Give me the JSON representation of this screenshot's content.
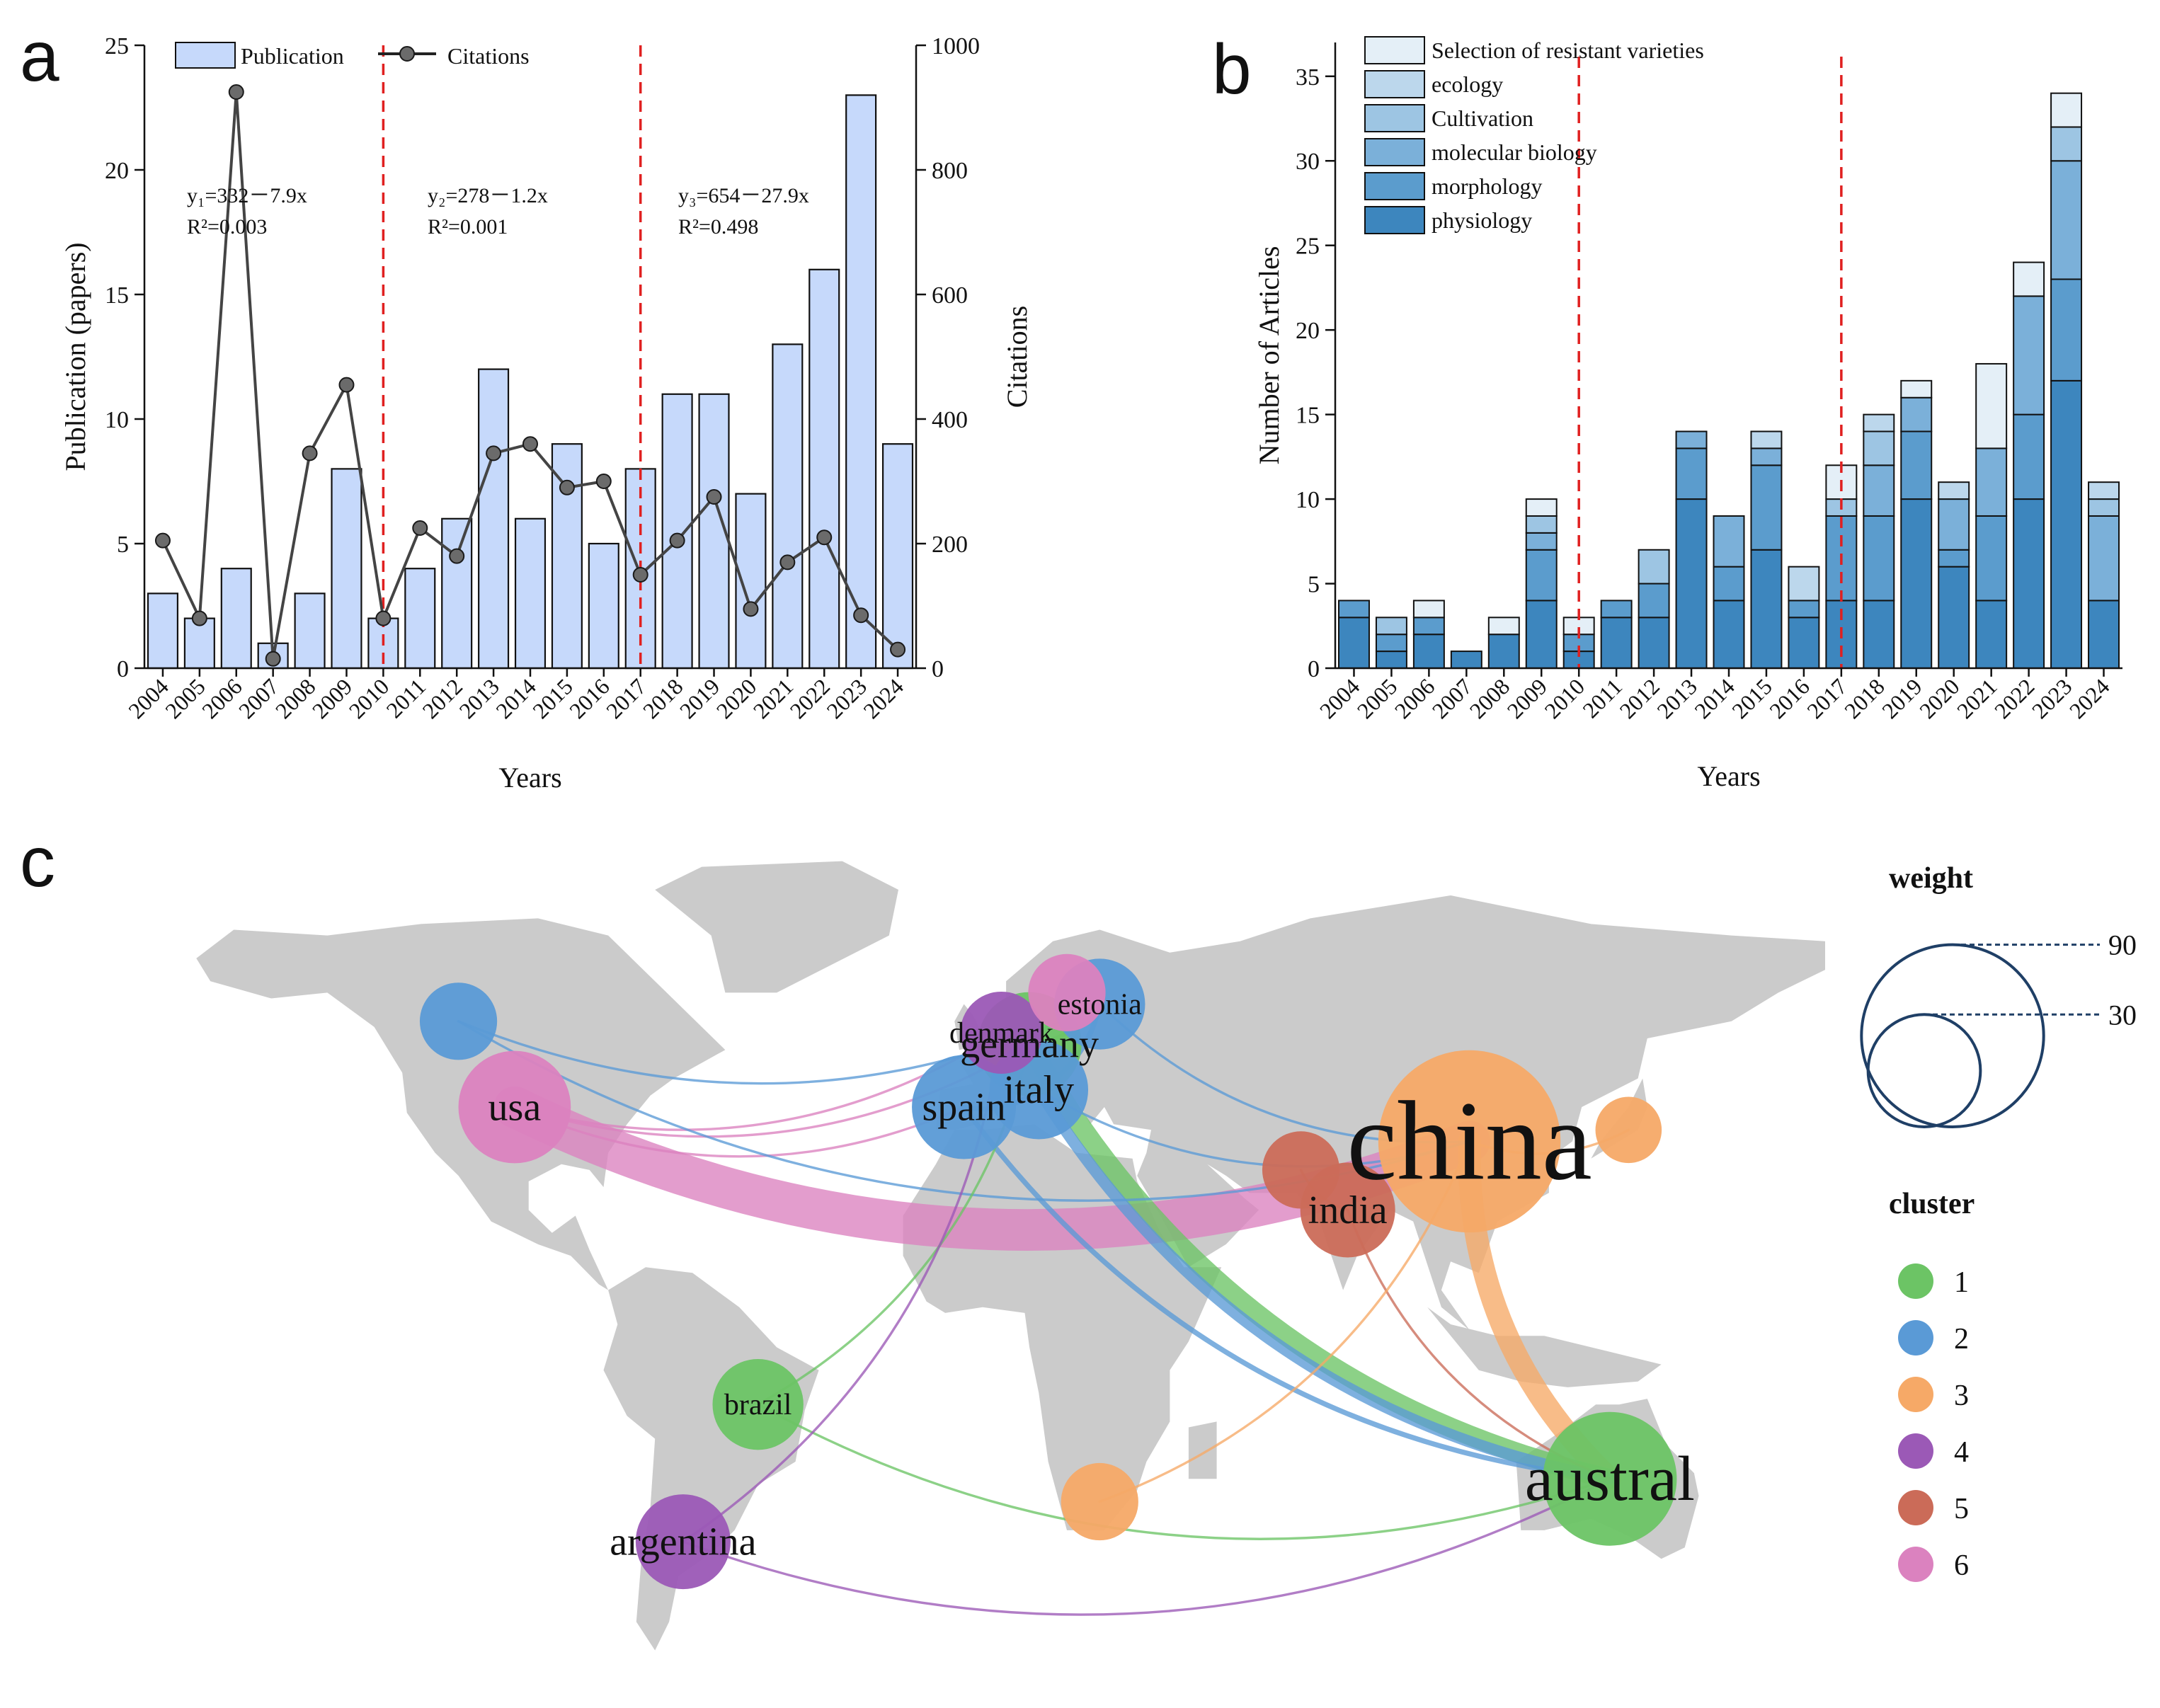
{
  "panels": {
    "a": "a",
    "b": "b",
    "c": "c"
  },
  "colors": {
    "pub_bar": "#c6d9fb",
    "pub_bar_stroke": "#111111",
    "citation_line": "#444444",
    "divider": "#e02020",
    "stack": [
      "#3d86be",
      "#5b9ccd",
      "#7bb0d9",
      "#9dc5e3",
      "#bcd7ec",
      "#e4eff7"
    ],
    "land": "#cbcbcb",
    "clusters": [
      "#6cc465",
      "#5a9ad6",
      "#f6a967",
      "#9b59b6",
      "#cb6b58",
      "#db82bf"
    ],
    "weight_ring": "#1f3f66"
  },
  "chart_data": [
    {
      "id": "a",
      "type": "bar+line",
      "title": "",
      "categories": [
        "2004",
        "2005",
        "2006",
        "2007",
        "2008",
        "2009",
        "2010",
        "2011",
        "2012",
        "2013",
        "2014",
        "2015",
        "2016",
        "2017",
        "2018",
        "2019",
        "2020",
        "2021",
        "2022",
        "2023",
        "2024"
      ],
      "series": [
        {
          "name": "Publication",
          "type": "bar",
          "axis": "left",
          "values": [
            3,
            2,
            4,
            1,
            3,
            8,
            2,
            4,
            6,
            12,
            6,
            9,
            5,
            8,
            11,
            11,
            7,
            13,
            16,
            23,
            9
          ]
        },
        {
          "name": "Citations",
          "type": "line",
          "axis": "right",
          "values": [
            205,
            80,
            925,
            15,
            345,
            455,
            80,
            225,
            180,
            345,
            360,
            290,
            300,
            150,
            205,
            275,
            95,
            170,
            210,
            85,
            30
          ]
        }
      ],
      "xlabel": "Years",
      "ylabel": "Publication (papers)",
      "y2label": "Citations",
      "ylim": [
        0,
        25
      ],
      "y2lim": [
        0,
        1000
      ],
      "yticks": [
        0,
        5,
        10,
        15,
        20,
        25
      ],
      "y2ticks": [
        0,
        200,
        400,
        600,
        800,
        1000
      ],
      "dividers": [
        "2010",
        "2017"
      ],
      "legend": [
        "Publication",
        "Citations"
      ],
      "annotations": [
        {
          "eq": "y₁=332－7.9x",
          "r2": "R²=0.003"
        },
        {
          "eq": "y₂=278－1.2x",
          "r2": "R²=0.001"
        },
        {
          "eq": "y₃=654－27.9x",
          "r2": "R²=0.498"
        }
      ]
    },
    {
      "id": "b",
      "type": "bar",
      "stacked": true,
      "categories": [
        "2004",
        "2005",
        "2006",
        "2007",
        "2008",
        "2009",
        "2010",
        "2011",
        "2012",
        "2013",
        "2014",
        "2015",
        "2016",
        "2017",
        "2018",
        "2019",
        "2020",
        "2021",
        "2022",
        "2023",
        "2024"
      ],
      "series": [
        {
          "name": "physiology",
          "values": [
            3,
            1,
            2,
            1,
            2,
            4,
            1,
            3,
            3,
            10,
            4,
            7,
            3,
            4,
            4,
            10,
            6,
            4,
            10,
            17,
            4
          ]
        },
        {
          "name": "morphology",
          "values": [
            1,
            1,
            1,
            0,
            0,
            3,
            1,
            1,
            2,
            3,
            2,
            5,
            1,
            5,
            5,
            4,
            1,
            5,
            5,
            6,
            0
          ]
        },
        {
          "name": "molecular biology",
          "values": [
            0,
            0,
            0,
            0,
            0,
            1,
            0,
            0,
            0,
            1,
            3,
            1,
            0,
            0,
            3,
            2,
            3,
            4,
            7,
            7,
            5
          ]
        },
        {
          "name": "Cultivation",
          "values": [
            0,
            1,
            0,
            0,
            0,
            1,
            0,
            0,
            2,
            0,
            0,
            0,
            0,
            1,
            2,
            0,
            0,
            0,
            0,
            2,
            1
          ]
        },
        {
          "name": "ecology",
          "values": [
            0,
            0,
            0,
            0,
            0,
            0,
            0,
            0,
            0,
            0,
            0,
            1,
            2,
            0,
            1,
            0,
            1,
            0,
            0,
            0,
            1
          ]
        },
        {
          "name": "Selection of resistant varieties",
          "values": [
            0,
            0,
            1,
            0,
            1,
            1,
            1,
            0,
            0,
            0,
            0,
            0,
            0,
            2,
            0,
            1,
            0,
            5,
            2,
            2,
            0
          ]
        }
      ],
      "xlabel": "Years",
      "ylabel": "Number of Articles",
      "ylim": [
        0,
        37
      ],
      "yticks": [
        0,
        5,
        10,
        15,
        20,
        25,
        30,
        35
      ],
      "dividers": [
        "2010",
        "2017"
      ],
      "legend": [
        "Selection of resistant varieties",
        "ecology",
        "Cultivation",
        "molecular biology",
        "morphology",
        "physiology"
      ]
    },
    {
      "id": "c",
      "type": "network-map",
      "nodes": [
        {
          "name": "china",
          "label": "china",
          "cluster": 3,
          "weight": 90,
          "lon": 104,
          "lat": 34
        },
        {
          "name": "usa",
          "label": "usa",
          "cluster": 6,
          "weight": 30,
          "lon": -100,
          "lat": 40
        },
        {
          "name": "austral",
          "label": "austral",
          "cluster": 1,
          "weight": 45,
          "lon": 134,
          "lat": -25
        },
        {
          "name": "germany",
          "label": "germany",
          "cluster": 1,
          "weight": 25,
          "lon": 10,
          "lat": 51
        },
        {
          "name": "spain",
          "label": "spain",
          "cluster": 2,
          "weight": 25,
          "lon": -4,
          "lat": 40
        },
        {
          "name": "italy",
          "label": "italy",
          "cluster": 2,
          "weight": 22,
          "lon": 12,
          "lat": 43
        },
        {
          "name": "estonia",
          "label": "estonia",
          "cluster": 2,
          "weight": 18,
          "lon": 25,
          "lat": 58
        },
        {
          "name": "denmark",
          "label": "denmark",
          "cluster": 4,
          "weight": 14,
          "lon": 4,
          "lat": 53
        },
        {
          "name": "finland",
          "label": "",
          "cluster": 6,
          "weight": 12,
          "lon": 18,
          "lat": 60
        },
        {
          "name": "canada",
          "label": "",
          "cluster": 2,
          "weight": 12,
          "lon": -112,
          "lat": 55
        },
        {
          "name": "india",
          "label": "india",
          "cluster": 5,
          "weight": 20,
          "lon": 78,
          "lat": 22
        },
        {
          "name": "pakistan",
          "label": "",
          "cluster": 5,
          "weight": 12,
          "lon": 68,
          "lat": 29
        },
        {
          "name": "japan",
          "label": "",
          "cluster": 3,
          "weight": 8,
          "lon": 138,
          "lat": 36
        },
        {
          "name": "brazil",
          "label": "brazil",
          "cluster": 1,
          "weight": 18,
          "lon": -48,
          "lat": -12
        },
        {
          "name": "argentina",
          "label": "argentina",
          "cluster": 4,
          "weight": 20,
          "lon": -64,
          "lat": -36
        },
        {
          "name": "southafrica",
          "label": "",
          "cluster": 3,
          "weight": 12,
          "lon": 25,
          "lat": -29
        }
      ],
      "links": [
        {
          "source": "usa",
          "target": "china",
          "weight": 30
        },
        {
          "source": "china",
          "target": "austral",
          "weight": 16
        },
        {
          "source": "germany",
          "target": "austral",
          "weight": 14
        },
        {
          "source": "italy",
          "target": "austral",
          "weight": 8
        },
        {
          "source": "spain",
          "target": "austral",
          "weight": 3
        },
        {
          "source": "usa",
          "target": "spain",
          "weight": 1
        },
        {
          "source": "usa",
          "target": "germany",
          "weight": 1
        },
        {
          "source": "usa",
          "target": "denmark",
          "weight": 1
        },
        {
          "source": "canada",
          "target": "china",
          "weight": 1
        },
        {
          "source": "canada",
          "target": "estonia",
          "weight": 1
        },
        {
          "source": "spain",
          "target": "italy",
          "weight": 3
        },
        {
          "source": "italy",
          "target": "estonia",
          "weight": 3
        },
        {
          "source": "germany",
          "target": "estonia",
          "weight": 2
        },
        {
          "source": "estonia",
          "target": "china",
          "weight": 1
        },
        {
          "source": "india",
          "target": "austral",
          "weight": 1
        },
        {
          "source": "pakistan",
          "target": "india",
          "weight": 1
        },
        {
          "source": "china",
          "target": "southafrica",
          "weight": 1
        },
        {
          "source": "china",
          "target": "japan",
          "weight": 1
        },
        {
          "source": "brazil",
          "target": "germany",
          "weight": 1
        },
        {
          "source": "brazil",
          "target": "austral",
          "weight": 1
        },
        {
          "source": "argentina",
          "target": "denmark",
          "weight": 1
        },
        {
          "source": "argentina",
          "target": "austral",
          "weight": 1
        },
        {
          "source": "italy",
          "target": "china",
          "weight": 1
        }
      ],
      "legend": {
        "weight_title": "weight",
        "weight_values": [
          90,
          30
        ],
        "cluster_title": "cluster",
        "clusters": [
          "1",
          "2",
          "3",
          "4",
          "5",
          "6"
        ]
      }
    }
  ]
}
